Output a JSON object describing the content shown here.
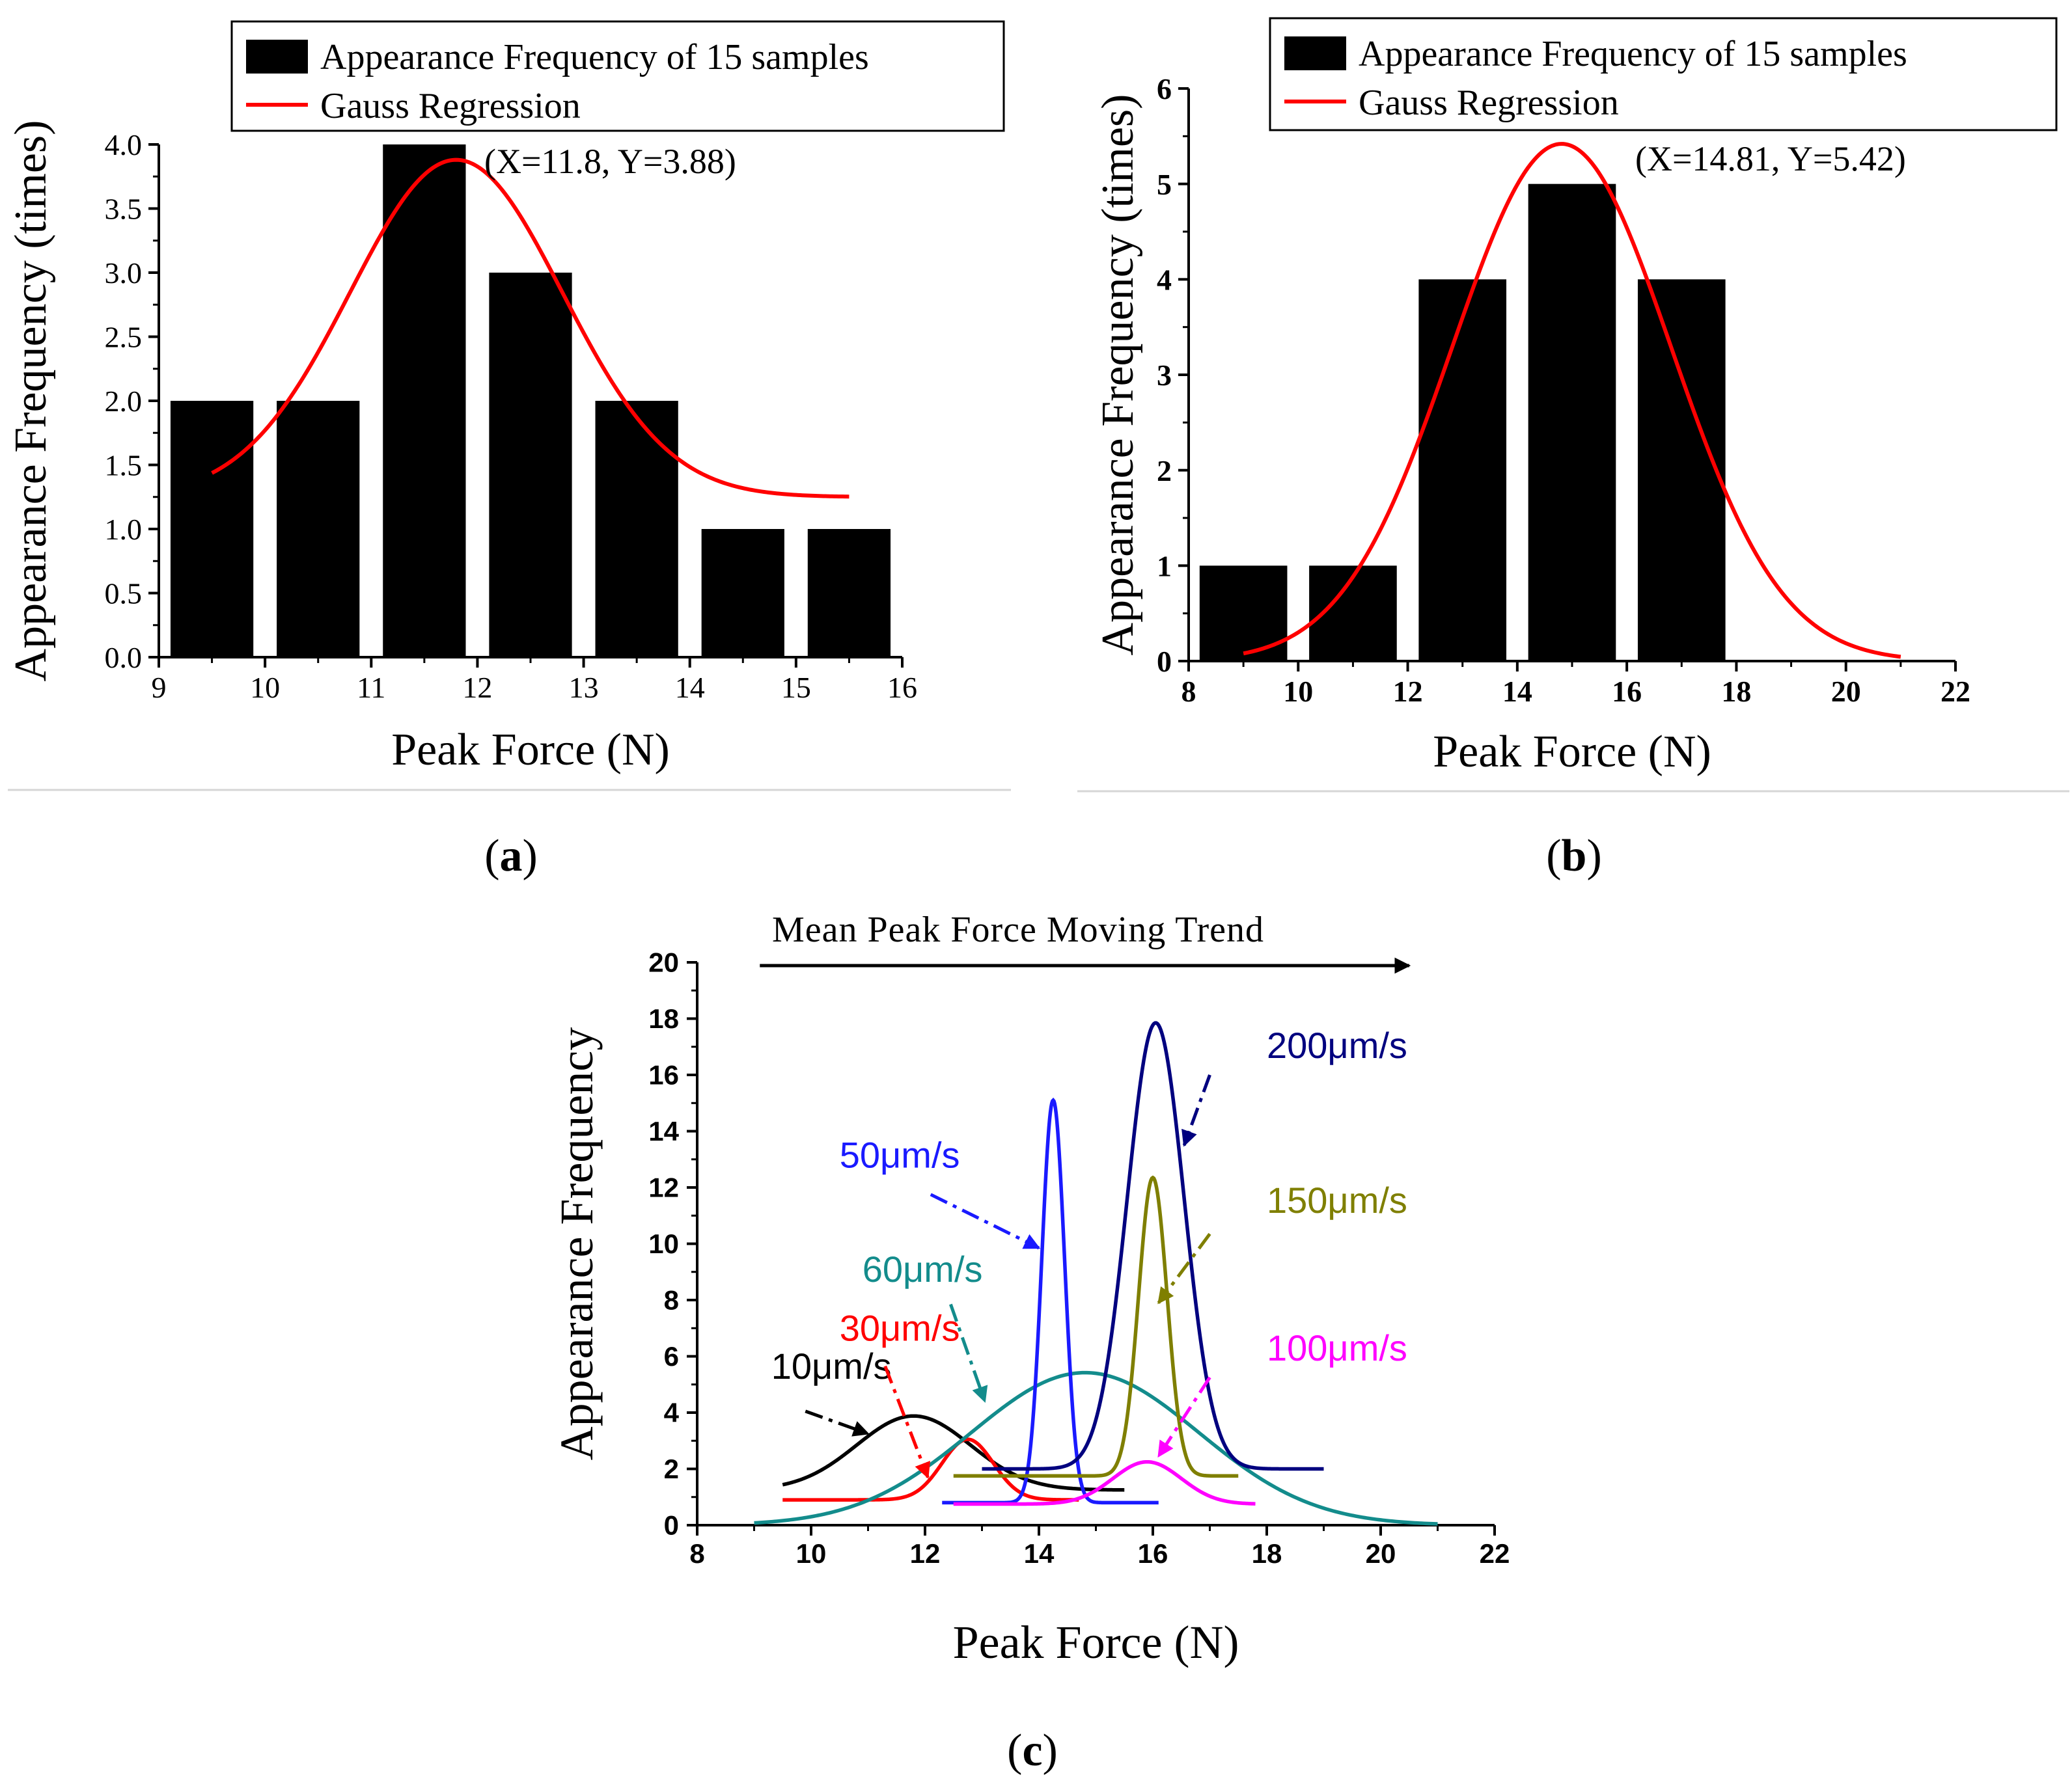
{
  "figure_labels": [
    "(a)",
    "(b)",
    "(c)"
  ],
  "chart_data": [
    {
      "id": "a",
      "type": "bar",
      "title": "",
      "xlabel": "Peak Force (N)",
      "ylabel": "Appearance Frequency (times)",
      "xlim": [
        9,
        16
      ],
      "ylim": [
        0,
        4
      ],
      "xticks": [
        9,
        10,
        11,
        12,
        13,
        14,
        15,
        16
      ],
      "yticks": [
        0.0,
        0.5,
        1.0,
        1.5,
        2.0,
        2.5,
        3.0,
        3.5,
        4.0
      ],
      "ytick_decimals": 1,
      "bar_width": 0.78,
      "bars": [
        {
          "x": 9.5,
          "value": 2
        },
        {
          "x": 10.5,
          "value": 2
        },
        {
          "x": 11.5,
          "value": 4
        },
        {
          "x": 12.5,
          "value": 3
        },
        {
          "x": 13.5,
          "value": 2
        },
        {
          "x": 14.5,
          "value": 1
        },
        {
          "x": 15.5,
          "value": 1
        }
      ],
      "fit": {
        "name": "Gauss Regression",
        "color": "#ff0000",
        "y0": 1.25,
        "amplitude": 2.63,
        "center": 11.8,
        "sigma": 1.0,
        "x_range": [
          9.5,
          15.5
        ]
      },
      "annotation": "(X=11.8, Y=3.88)",
      "legend": {
        "position": "top-right",
        "entries": [
          "Appearance Frequency of 15 samples",
          "Gauss Regression"
        ]
      }
    },
    {
      "id": "b",
      "type": "bar",
      "title": "",
      "xlabel": "Peak Force (N)",
      "ylabel": "Appearance Frequency (times)",
      "xlim": [
        8,
        22
      ],
      "ylim": [
        0,
        6
      ],
      "xticks": [
        8,
        10,
        12,
        14,
        16,
        18,
        20,
        22
      ],
      "yticks": [
        0,
        1,
        2,
        3,
        4,
        5,
        6
      ],
      "ytick_decimals": 0,
      "bar_width": 1.6,
      "bars": [
        {
          "x": 9.0,
          "value": 1
        },
        {
          "x": 11.0,
          "value": 1
        },
        {
          "x": 13.0,
          "value": 4
        },
        {
          "x": 15.0,
          "value": 5
        },
        {
          "x": 17.0,
          "value": 4
        }
      ],
      "fit": {
        "name": "Gauss Regression",
        "color": "#ff0000",
        "y0": 0.0,
        "amplitude": 5.42,
        "center": 14.81,
        "sigma": 2.0,
        "x_range": [
          9.0,
          21.0
        ]
      },
      "annotation": "(X=14.81, Y=5.42)",
      "legend": {
        "position": "top-right",
        "entries": [
          "Appearance Frequency of 15 samples",
          "Gauss Regression"
        ]
      }
    },
    {
      "id": "c",
      "type": "line",
      "title": "Mean Peak Force Moving Trend",
      "xlabel": "Peak Force (N)",
      "ylabel": "Appearance Frequency",
      "xlim": [
        8,
        22
      ],
      "ylim": [
        0,
        20
      ],
      "xticks": [
        8,
        10,
        12,
        14,
        16,
        18,
        20,
        22
      ],
      "yticks": [
        0,
        2,
        4,
        6,
        8,
        10,
        12,
        14,
        16,
        18,
        20
      ],
      "series": [
        {
          "name": "10μm/s",
          "color": "#000000",
          "y0": 1.25,
          "amplitude": 2.63,
          "center": 11.8,
          "sigma": 1.0,
          "x_range": [
            9.5,
            15.5
          ]
        },
        {
          "name": "30μm/s",
          "color": "#ff0000",
          "y0": 0.9,
          "amplitude": 2.15,
          "center": 12.75,
          "sigma": 0.45,
          "x_range": [
            9.5,
            14.7
          ]
        },
        {
          "name": "60μm/s",
          "color": "#138c8c",
          "y0": 0.0,
          "amplitude": 5.42,
          "center": 14.81,
          "sigma": 2.0,
          "x_range": [
            9.0,
            21.0
          ]
        },
        {
          "name": "50μm/s",
          "color": "#1a1aff",
          "y0": 0.8,
          "amplitude": 14.3,
          "center": 14.25,
          "sigma": 0.2,
          "x_range": [
            12.3,
            16.1
          ]
        },
        {
          "name": "150μm/s",
          "color": "#7f7f00",
          "y0": 1.75,
          "amplitude": 10.6,
          "center": 16.0,
          "sigma": 0.25,
          "x_range": [
            12.5,
            17.5
          ]
        },
        {
          "name": "100μm/s",
          "color": "#ff00ff",
          "y0": 0.75,
          "amplitude": 1.5,
          "center": 15.9,
          "sigma": 0.6,
          "x_range": [
            12.5,
            17.8
          ]
        },
        {
          "name": "200μm/s",
          "color": "#00007f",
          "y0": 2.0,
          "amplitude": 15.85,
          "center": 16.05,
          "sigma": 0.5,
          "x_range": [
            13.0,
            19.0
          ]
        }
      ],
      "annotations": [
        {
          "text": "10μm/s",
          "color": "#000000",
          "at": [
            9.3,
            5.2
          ],
          "arrow_from": [
            9.9,
            4.05
          ],
          "arrow_to": [
            11.0,
            3.25
          ]
        },
        {
          "text": "30μm/s",
          "color": "#ff0000",
          "at": [
            10.5,
            6.55
          ],
          "arrow_from": [
            11.3,
            5.65
          ],
          "arrow_to": [
            12.05,
            1.7
          ]
        },
        {
          "text": "60μm/s",
          "color": "#138c8c",
          "at": [
            10.9,
            8.65
          ],
          "arrow_from": [
            12.45,
            7.85
          ],
          "arrow_to": [
            13.05,
            4.4
          ]
        },
        {
          "text": "50μm/s",
          "color": "#1a1aff",
          "at": [
            10.5,
            12.7
          ],
          "arrow_from": [
            12.1,
            11.75
          ],
          "arrow_to": [
            14.0,
            9.85
          ]
        },
        {
          "text": "150μm/s",
          "color": "#7f7f00",
          "at": [
            18.0,
            11.1
          ],
          "arrow_from": [
            17.0,
            10.35
          ],
          "arrow_to": [
            16.1,
            7.9
          ]
        },
        {
          "text": "100μm/s",
          "color": "#ff00ff",
          "at": [
            18.0,
            5.85
          ],
          "arrow_from": [
            17.0,
            5.25
          ],
          "arrow_to": [
            16.1,
            2.45
          ]
        },
        {
          "text": "200μm/s",
          "color": "#00007f",
          "at": [
            18.0,
            16.6
          ],
          "arrow_from": [
            17.0,
            16.0
          ],
          "arrow_to": [
            16.55,
            13.5
          ]
        }
      ],
      "trend_arrow": {
        "x_range": [
          9.1,
          20.5
        ]
      }
    }
  ]
}
